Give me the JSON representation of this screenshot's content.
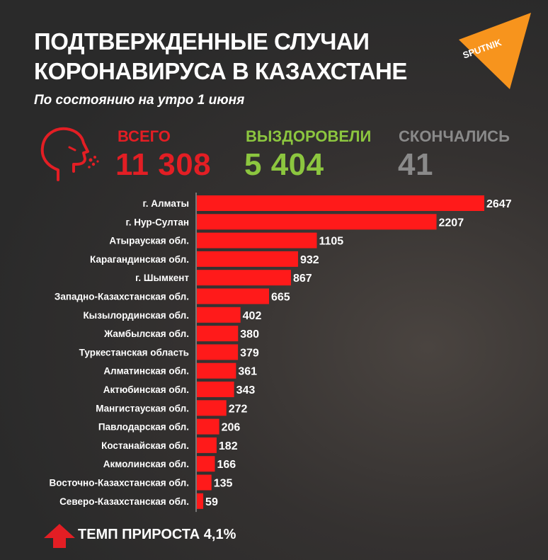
{
  "header": {
    "title_line1": "ПОДТВЕРЖДЕННЫЕ СЛУЧАИ",
    "title_line2": "КОРОНАВИРУСА В КАЗАХСТАНЕ",
    "subtitle": "По состоянию на утро 1 июня"
  },
  "logo": {
    "text": "SPUTNIK",
    "color": "#f7941d"
  },
  "stats": {
    "total": {
      "label": "ВСЕГО",
      "value": "11 308",
      "color": "#e31e24"
    },
    "recovered": {
      "label": "ВЫЗДОРОВЕЛИ",
      "value": "5 404",
      "color": "#8cc63f"
    },
    "died": {
      "label": "СКОНЧАЛИСЬ",
      "value": "41",
      "color": "#8a8a8a"
    }
  },
  "icons": {
    "head": "sneezing-head-icon",
    "arrow": "arrow-up-icon"
  },
  "colors": {
    "bar": "#ff1a1a",
    "accent": "#e31e24",
    "text": "#ffffff"
  },
  "chart_data": {
    "type": "bar",
    "orientation": "horizontal",
    "categories": [
      "г. Алматы",
      "г. Нур-Султан",
      "Атырауская обл.",
      "Карагандинская обл.",
      "г. Шымкент",
      "Западно-Казахстанская обл.",
      "Кызылординская обл.",
      "Жамбылская обл.",
      "Туркестанская область",
      "Алматинская обл.",
      "Актюбинская обл.",
      "Мангистауская обл.",
      "Павлодарская обл.",
      "Костанайская обл.",
      "Акмолинская обл.",
      "Восточно-Казахстанская обл.",
      "Северо-Казахстанская обл."
    ],
    "values": [
      2647,
      2207,
      1105,
      932,
      867,
      665,
      402,
      380,
      379,
      361,
      343,
      272,
      206,
      182,
      166,
      135,
      59
    ],
    "xlim": [
      0,
      2647
    ],
    "grid": false,
    "data_labels": true
  },
  "footer": {
    "text": "ТЕМП ПРИРОСТА 4,1%"
  }
}
